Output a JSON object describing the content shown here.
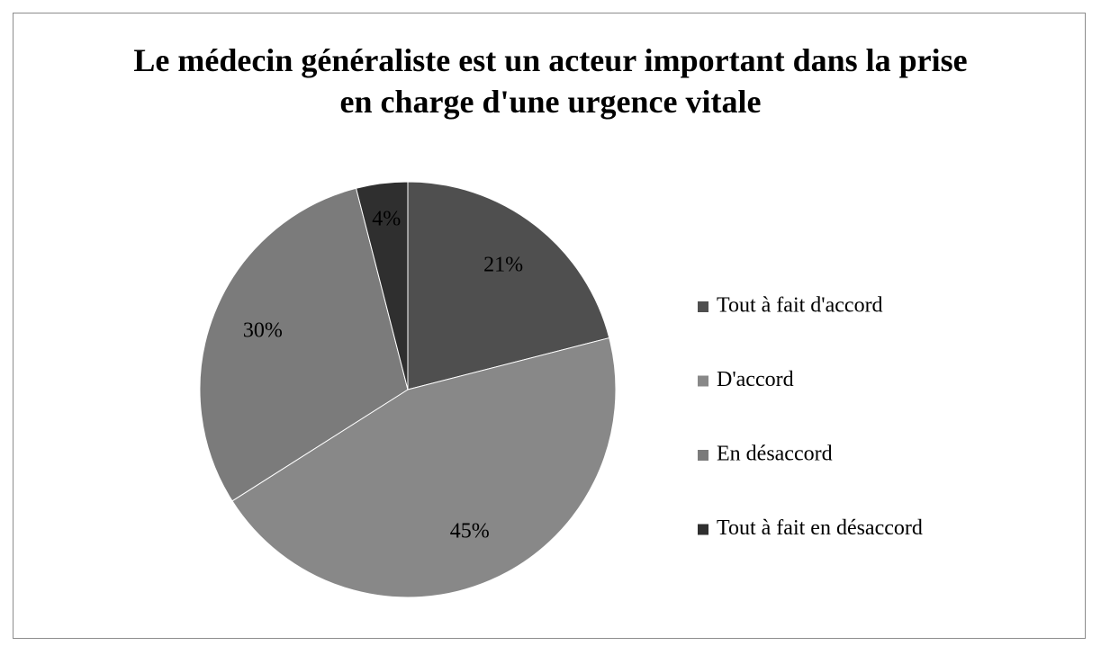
{
  "chart_data": {
    "type": "pie",
    "title": "Le médecin généraliste est un acteur important dans la prise en charge d'une urgence vitale",
    "categories": [
      "Tout à fait d'accord",
      "D'accord",
      "En désaccord",
      "Tout à fait en désaccord"
    ],
    "values": [
      21,
      45,
      30,
      4
    ],
    "value_labels": [
      "21%",
      "45%",
      "30%",
      "4%"
    ],
    "colors": [
      "#4f4f4f",
      "#888888",
      "#7b7b7b",
      "#2f2f2f"
    ],
    "legend": "right"
  }
}
